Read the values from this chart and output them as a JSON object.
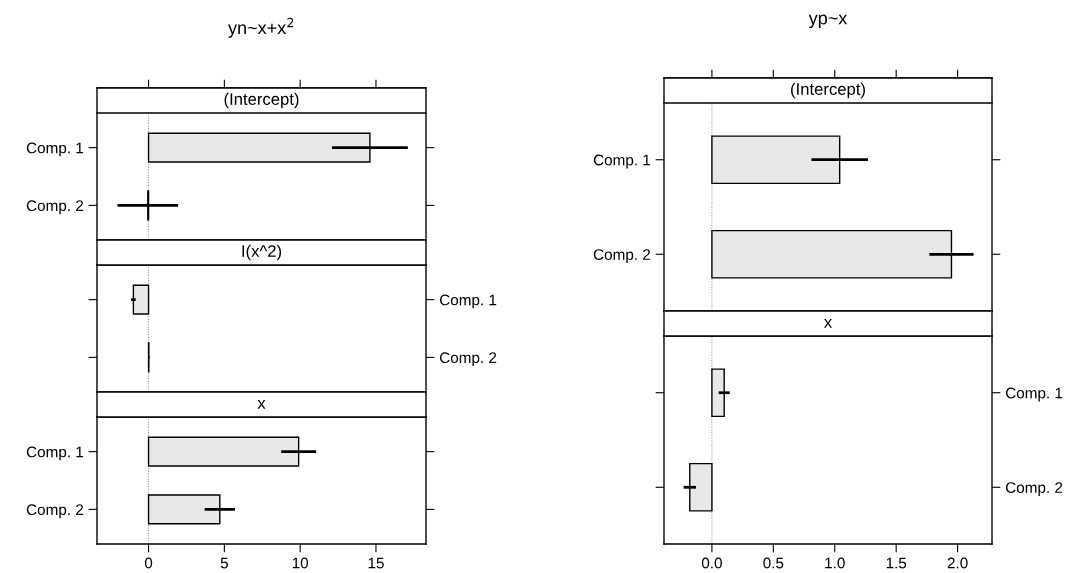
{
  "chart_data": [
    {
      "type": "bar",
      "orientation": "horizontal",
      "title": "yn~x+x$^{2}$",
      "subtitle": "(Intercept)",
      "categories": [
        "Comp. 1",
        "Comp. 2"
      ],
      "values": [
        14.6,
        -0.05
      ],
      "errors": [
        2.5,
        2.0
      ],
      "colors": [
        "#e8e8e8",
        "#e8e8e8"
      ],
      "xlim": [
        -3.4,
        18.3
      ],
      "xticks": [
        {
          "value": 0,
          "label": null
        },
        {
          "value": 5,
          "label": null
        },
        {
          "value": 10,
          "label": null
        },
        {
          "value": 15,
          "label": null
        }
      ],
      "tick_labels": "y",
      "ref_lines": [
        {
          "axis": "x",
          "value": 0,
          "color": "#808080",
          "line_style": "dotted"
        }
      ]
    },
    {
      "type": "bar",
      "orientation": "horizontal",
      "subtitle": "I(x^2)",
      "categories": [
        "Comp. 1",
        "Comp. 2"
      ],
      "values": [
        -1.0,
        0.02
      ],
      "errors": [
        0.15,
        0.05
      ],
      "colors": [
        "#e8e8e8",
        "#e8e8e8"
      ],
      "xlim": [
        -3.4,
        18.3
      ],
      "tick_labels": "y",
      "ref_lines": [
        {
          "axis": "x",
          "value": 0,
          "color": "#808080",
          "line_style": "dotted"
        }
      ]
    },
    {
      "type": "bar",
      "orientation": "horizontal",
      "subtitle": "x",
      "categories": [
        "Comp. 1",
        "Comp. 2"
      ],
      "values": [
        9.9,
        4.7
      ],
      "errors": [
        1.15,
        1.0
      ],
      "colors": [
        "#e8e8e8",
        "#e8e8e8"
      ],
      "xlim": [
        -3.4,
        18.3
      ],
      "xticks": [
        0,
        5,
        10,
        15
      ],
      "ref_lines": [
        {
          "axis": "x",
          "value": 0,
          "color": "#808080",
          "line_style": "dotted"
        }
      ]
    },
    {
      "type": "bar",
      "orientation": "horizontal",
      "title": "yp~x",
      "subtitle": "(Intercept)",
      "categories": [
        "Comp. 1",
        "Comp. 2"
      ],
      "values": [
        1.04,
        1.95
      ],
      "errors": [
        0.23,
        0.18
      ],
      "colors": [
        "#e8e8e8",
        "#e8e8e8"
      ],
      "xlim": [
        -0.39,
        2.28
      ],
      "xticks": [
        {
          "value": 0,
          "label": null
        },
        {
          "value": 0.5,
          "label": null
        },
        {
          "value": 1,
          "label": null
        },
        {
          "value": 1.5,
          "label": null
        },
        {
          "value": 2,
          "label": null
        }
      ],
      "tick_labels": "y",
      "ref_lines": [
        {
          "axis": "x",
          "value": 0,
          "color": "#808080",
          "line_style": "dotted"
        }
      ]
    },
    {
      "type": "bar",
      "orientation": "horizontal",
      "subtitle": "x",
      "categories": [
        "Comp. 1",
        "Comp. 2"
      ],
      "values": [
        0.1,
        -0.18
      ],
      "errors": [
        0.045,
        0.05
      ],
      "colors": [
        "#e8e8e8",
        "#e8e8e8"
      ],
      "xlim": [
        -0.39,
        2.28
      ],
      "xticks": [
        {
          "value": 0.0,
          "label": "0.0"
        },
        {
          "value": 0.5,
          "label": "0.5"
        },
        {
          "value": 1.0,
          "label": "1.0"
        },
        {
          "value": 1.5,
          "label": "1.5"
        },
        {
          "value": 2.0,
          "label": "2.0"
        }
      ],
      "ref_lines": [
        {
          "axis": "x",
          "value": 0,
          "color": "#808080",
          "line_style": "dotted"
        }
      ]
    }
  ]
}
